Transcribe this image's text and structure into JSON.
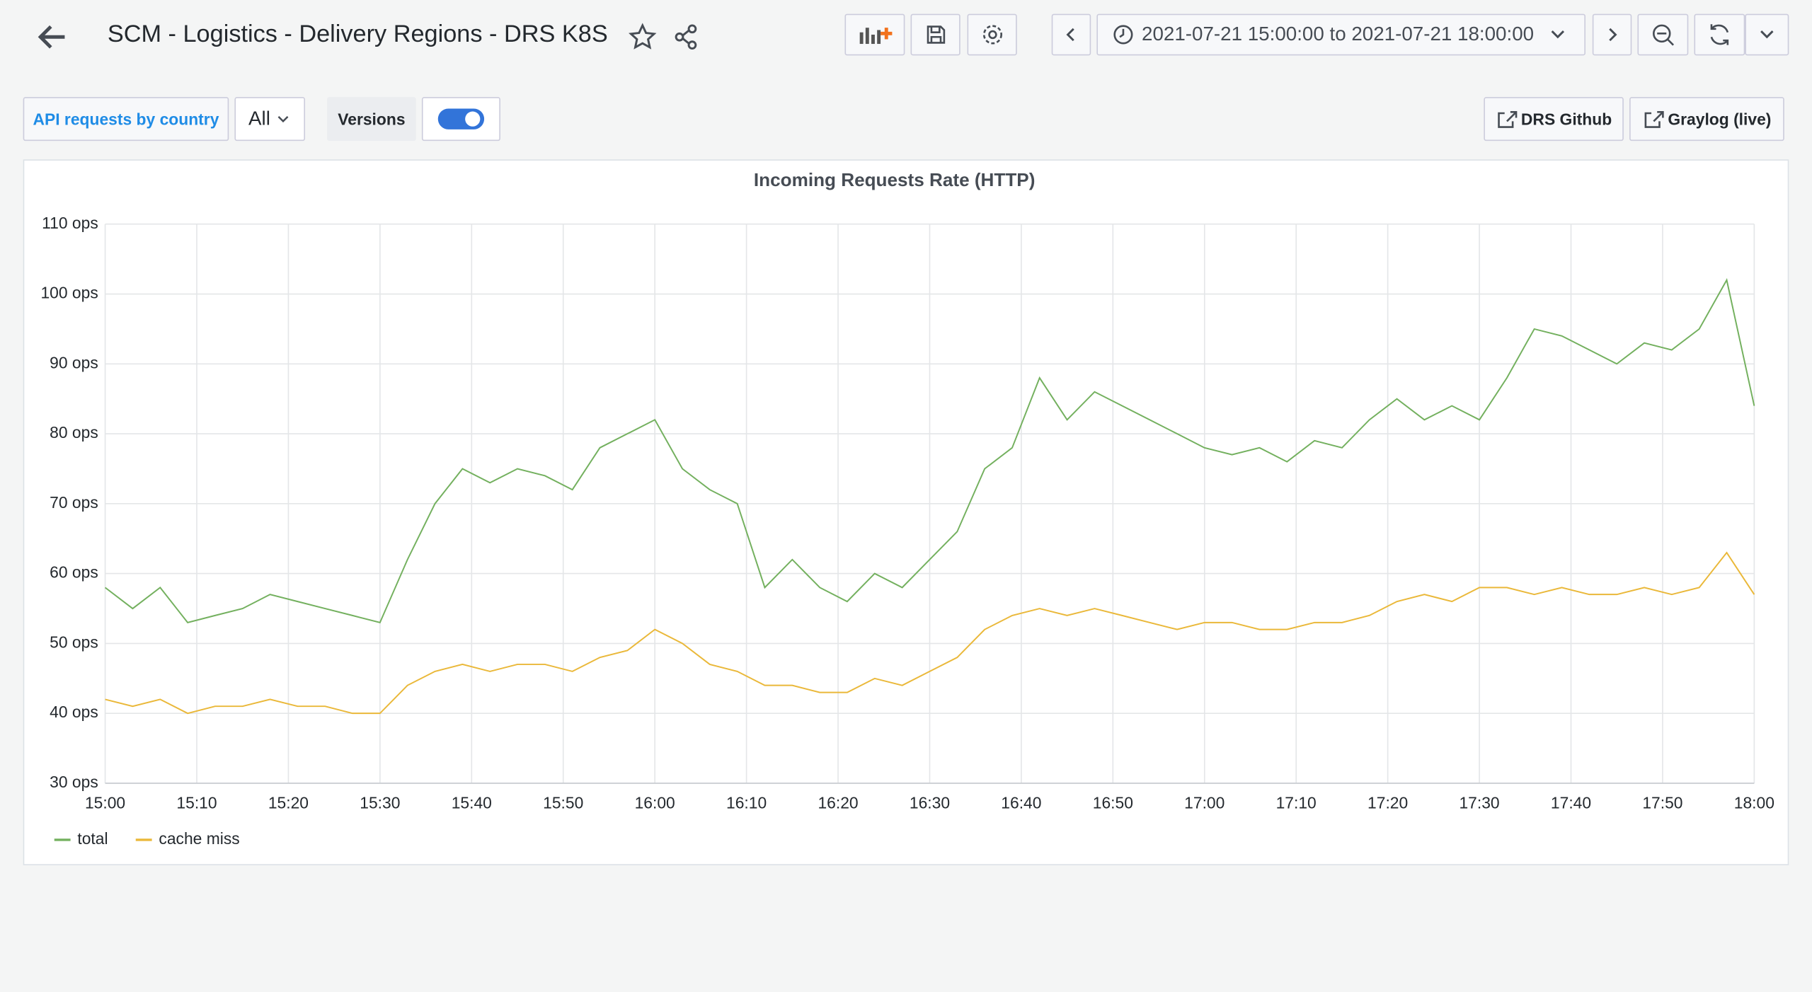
{
  "header": {
    "title": "SCM - Logistics - Delivery Regions - DRS K8S",
    "time_range": "2021-07-21 15:00:00 to 2021-07-21 18:00:00"
  },
  "variables": {
    "api_label": "API requests by country",
    "api_value": "All",
    "versions_label": "Versions"
  },
  "links": [
    "DRS Github",
    "Graylog (live)"
  ],
  "chart_data": {
    "type": "line",
    "title": "Incoming Requests Rate (HTTP)",
    "x": [
      "15:00",
      "15:03",
      "15:06",
      "15:09",
      "15:12",
      "15:15",
      "15:18",
      "15:21",
      "15:24",
      "15:27",
      "15:30",
      "15:33",
      "15:36",
      "15:39",
      "15:42",
      "15:45",
      "15:48",
      "15:51",
      "15:54",
      "15:57",
      "16:00",
      "16:03",
      "16:06",
      "16:09",
      "16:12",
      "16:15",
      "16:18",
      "16:21",
      "16:24",
      "16:27",
      "16:30",
      "16:33",
      "16:36",
      "16:39",
      "16:42",
      "16:45",
      "16:48",
      "16:51",
      "16:54",
      "16:57",
      "17:00",
      "17:03",
      "17:06",
      "17:09",
      "17:12",
      "17:15",
      "17:18",
      "17:21",
      "17:24",
      "17:27",
      "17:30",
      "17:33",
      "17:36",
      "17:39",
      "17:42",
      "17:45",
      "17:48",
      "17:51",
      "17:54",
      "17:57",
      "18:00"
    ],
    "series": [
      {
        "name": "total",
        "color": "#73b05e",
        "values": [
          58,
          55,
          58,
          53,
          54,
          55,
          57,
          56,
          55,
          54,
          53,
          62,
          70,
          75,
          73,
          75,
          74,
          72,
          78,
          80,
          82,
          75,
          72,
          70,
          58,
          62,
          58,
          56,
          60,
          58,
          62,
          66,
          75,
          78,
          88,
          82,
          86,
          84,
          82,
          80,
          78,
          77,
          78,
          76,
          79,
          78,
          82,
          85,
          82,
          84,
          82,
          88,
          95,
          94,
          92,
          90,
          93,
          92,
          95,
          102,
          84
        ]
      },
      {
        "name": "cache miss",
        "color": "#eab839",
        "values": [
          42,
          41,
          42,
          40,
          41,
          41,
          42,
          41,
          41,
          40,
          40,
          44,
          46,
          47,
          46,
          47,
          47,
          46,
          48,
          49,
          52,
          50,
          47,
          46,
          44,
          44,
          43,
          43,
          45,
          44,
          46,
          48,
          52,
          54,
          55,
          54,
          55,
          54,
          53,
          52,
          53,
          53,
          52,
          52,
          53,
          53,
          54,
          56,
          57,
          56,
          58,
          58,
          57,
          58,
          57,
          57,
          58,
          57,
          58,
          63,
          57
        ]
      }
    ],
    "xlim": [
      "15:00",
      "18:00"
    ],
    "xticks": [
      "15:00",
      "15:10",
      "15:20",
      "15:30",
      "15:40",
      "15:50",
      "16:00",
      "16:10",
      "16:20",
      "16:30",
      "16:40",
      "16:50",
      "17:00",
      "17:10",
      "17:20",
      "17:30",
      "17:40",
      "17:50",
      "18:00"
    ],
    "ylim": [
      30,
      110
    ],
    "yticks": [
      {
        "value": 30,
        "label": "30 ops"
      },
      {
        "value": 40,
        "label": "40 ops"
      },
      {
        "value": 50,
        "label": "50 ops"
      },
      {
        "value": 60,
        "label": "60 ops"
      },
      {
        "value": 70,
        "label": "70 ops"
      },
      {
        "value": 80,
        "label": "80 ops"
      },
      {
        "value": 90,
        "label": "90 ops"
      },
      {
        "value": 100,
        "label": "100 ops"
      },
      {
        "value": 110,
        "label": "110 ops"
      }
    ],
    "grid": true,
    "legend": "bottom-left"
  }
}
